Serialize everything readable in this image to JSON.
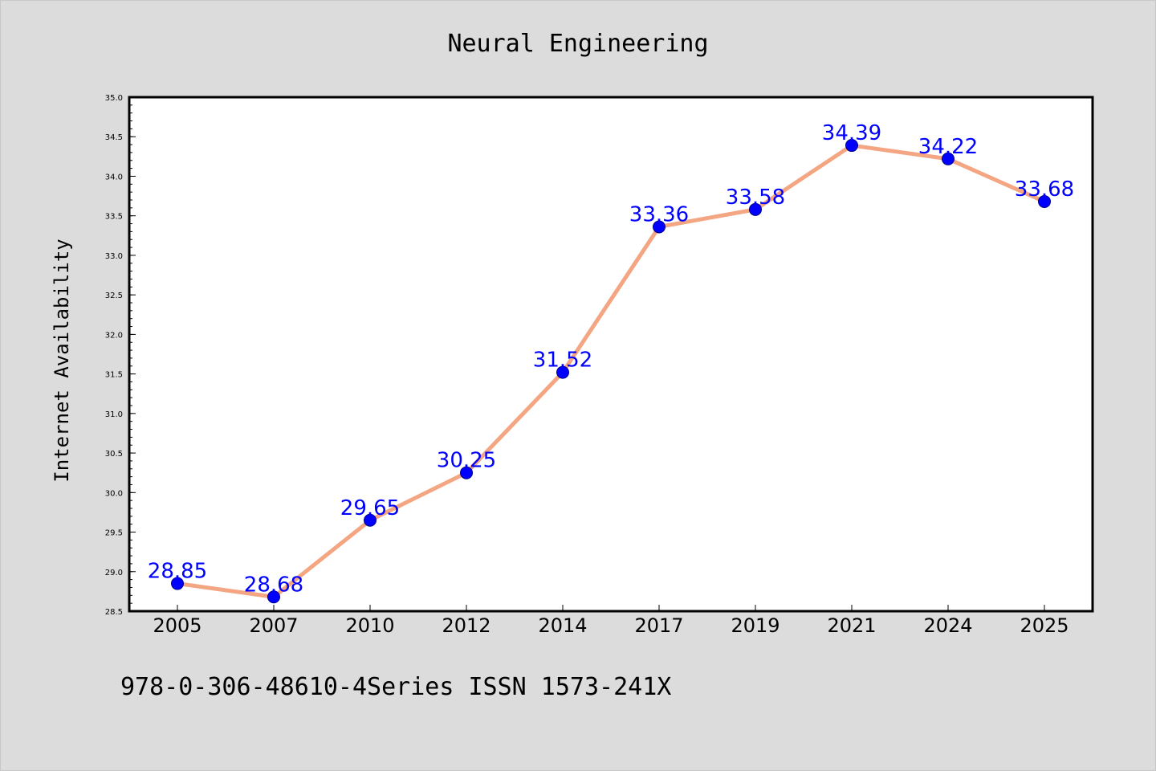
{
  "chart_data": {
    "type": "line",
    "title": "Neural Engineering",
    "xlabel": "",
    "ylabel": "Internet Availability",
    "categories": [
      "2005",
      "2007",
      "2010",
      "2012",
      "2014",
      "2017",
      "2019",
      "2021",
      "2024",
      "2025"
    ],
    "values": [
      28.85,
      28.68,
      29.65,
      30.25,
      31.52,
      33.36,
      33.58,
      34.39,
      34.22,
      33.68
    ],
    "data_labels": [
      "28.85",
      "28.68",
      "29.65",
      "30.25",
      "31.52",
      "33.36",
      "33.58",
      "34.39",
      "34.22",
      "33.68"
    ],
    "ylim": [
      28.5,
      35.0
    ],
    "yticks": [
      28.5,
      29.0,
      29.5,
      30.0,
      30.5,
      31.0,
      31.5,
      32.0,
      32.5,
      33.0,
      33.5,
      34.0,
      34.5,
      35.0
    ],
    "ytick_labels": [
      "28.5",
      "29.0",
      "29.5",
      "30.0",
      "30.5",
      "31.0",
      "31.5",
      "32.0",
      "32.5",
      "33.0",
      "33.5",
      "34.0",
      "34.5",
      "35.0"
    ],
    "grid": false,
    "colors": {
      "line": "#f4a582",
      "marker": "#0000ff",
      "marker_edge": "#00008b",
      "label": "#0000ff",
      "background": "#dcdcdc",
      "plot_background": "#ffffff"
    }
  },
  "footer": {
    "text": "978-0-306-48610-4Series ISSN 1573-241X"
  }
}
